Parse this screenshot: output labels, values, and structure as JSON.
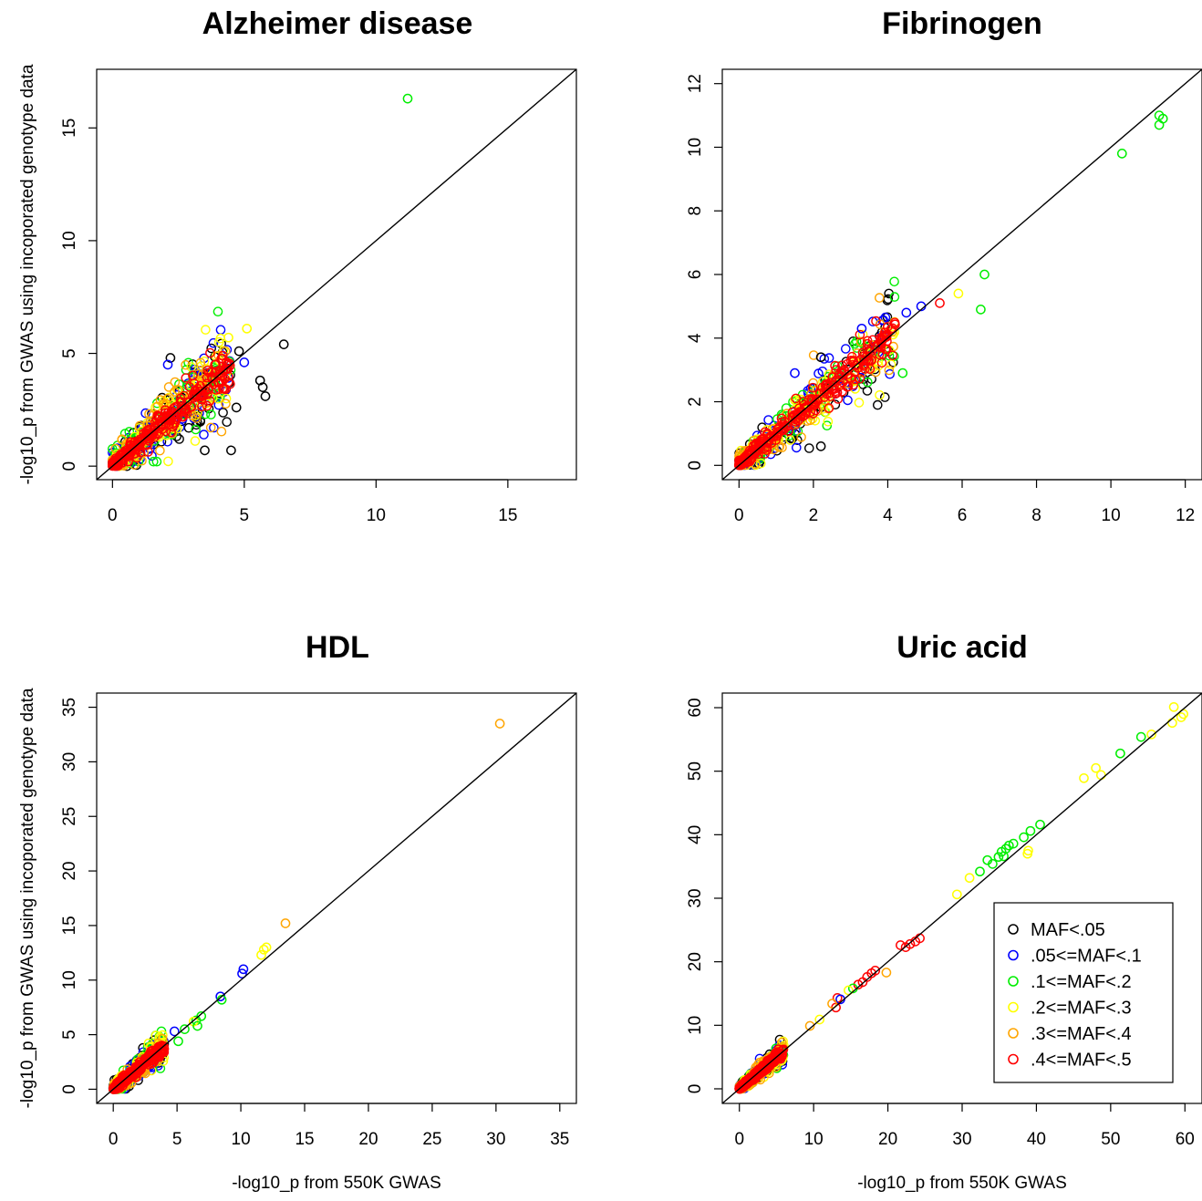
{
  "figure": {
    "ylabel": "-log10_p from GWAS using incoporated genotype data",
    "xlabel": "-log10_p from 550K GWAS"
  },
  "legend": {
    "entries": [
      {
        "label": "MAF<.05",
        "color": "#000000"
      },
      {
        "label": ".05<=MAF<.1",
        "color": "#0000ff"
      },
      {
        "label": ".1<=MAF<.2",
        "color": "#00ee00"
      },
      {
        "label": ".2<=MAF<.3",
        "color": "#ffff00"
      },
      {
        "label": ".3<=MAF<.4",
        "color": "#ffa500"
      },
      {
        "label": ".4<=MAF<.5",
        "color": "#ff0000"
      }
    ]
  },
  "chart_data": [
    {
      "type": "scatter",
      "title": "Alzheimer disease",
      "xlim": [
        -0.6,
        17.6
      ],
      "ylim": [
        -0.6,
        17.6
      ],
      "xticks": [
        0,
        5,
        10,
        15
      ],
      "yticks": [
        0,
        5,
        10,
        15
      ],
      "cloud": {
        "x_max": 4.5,
        "spread": 0.8
      },
      "points": [
        {
          "x": 11.2,
          "y": 16.3,
          "maf": 2
        },
        {
          "x": 6.5,
          "y": 5.4,
          "maf": 0
        },
        {
          "x": 5.1,
          "y": 6.1,
          "maf": 3
        },
        {
          "x": 4.5,
          "y": 0.7,
          "maf": 0
        },
        {
          "x": 5.6,
          "y": 3.8,
          "maf": 0
        },
        {
          "x": 5.8,
          "y": 3.1,
          "maf": 0
        },
        {
          "x": 5.7,
          "y": 3.5,
          "maf": 0
        },
        {
          "x": 5.0,
          "y": 4.6,
          "maf": 1
        },
        {
          "x": 4.8,
          "y": 5.1,
          "maf": 0
        },
        {
          "x": 3.5,
          "y": 0.7,
          "maf": 0
        },
        {
          "x": 2.2,
          "y": 4.8,
          "maf": 0
        },
        {
          "x": 4.7,
          "y": 2.6,
          "maf": 0
        },
        {
          "x": 4.4,
          "y": 5.7,
          "maf": 3
        },
        {
          "x": 2.1,
          "y": 4.5,
          "maf": 1
        }
      ]
    },
    {
      "type": "scatter",
      "title": "Fibrinogen",
      "xlim": [
        -0.45,
        12.45
      ],
      "ylim": [
        -0.45,
        12.45
      ],
      "xticks": [
        0,
        2,
        4,
        6,
        8,
        10,
        12
      ],
      "yticks": [
        0,
        2,
        4,
        6,
        8,
        10,
        12
      ],
      "cloud": {
        "x_max": 4.2,
        "spread": 0.5
      },
      "points": [
        {
          "x": 11.3,
          "y": 11.0,
          "maf": 2
        },
        {
          "x": 11.4,
          "y": 10.9,
          "maf": 2
        },
        {
          "x": 11.3,
          "y": 10.7,
          "maf": 2
        },
        {
          "x": 10.3,
          "y": 9.8,
          "maf": 2
        },
        {
          "x": 6.6,
          "y": 6.0,
          "maf": 2
        },
        {
          "x": 6.5,
          "y": 4.9,
          "maf": 2
        },
        {
          "x": 5.9,
          "y": 5.4,
          "maf": 3
        },
        {
          "x": 5.4,
          "y": 5.1,
          "maf": 5
        },
        {
          "x": 4.9,
          "y": 5.0,
          "maf": 1
        },
        {
          "x": 4.5,
          "y": 4.8,
          "maf": 1
        },
        {
          "x": 3.3,
          "y": 4.3,
          "maf": 1
        },
        {
          "x": 2.2,
          "y": 3.4,
          "maf": 0
        },
        {
          "x": 2.2,
          "y": 0.6,
          "maf": 0
        },
        {
          "x": 4.4,
          "y": 2.9,
          "maf": 2
        },
        {
          "x": 1.5,
          "y": 2.9,
          "maf": 1
        }
      ]
    },
    {
      "type": "scatter",
      "title": "HDL",
      "xlim": [
        -1.3,
        36.3
      ],
      "ylim": [
        -1.3,
        36.3
      ],
      "xticks": [
        0,
        5,
        10,
        15,
        20,
        25,
        30,
        35
      ],
      "yticks": [
        0,
        5,
        10,
        15,
        20,
        25,
        30,
        35
      ],
      "cloud": {
        "x_max": 4.0,
        "spread": 0.6
      },
      "points": [
        {
          "x": 30.3,
          "y": 33.5,
          "maf": 4
        },
        {
          "x": 13.5,
          "y": 15.2,
          "maf": 4
        },
        {
          "x": 11.6,
          "y": 12.3,
          "maf": 3
        },
        {
          "x": 11.8,
          "y": 12.8,
          "maf": 3
        },
        {
          "x": 12.0,
          "y": 13.0,
          "maf": 3
        },
        {
          "x": 10.1,
          "y": 10.6,
          "maf": 1
        },
        {
          "x": 10.2,
          "y": 11.0,
          "maf": 1
        },
        {
          "x": 8.4,
          "y": 8.5,
          "maf": 1
        },
        {
          "x": 8.5,
          "y": 8.2,
          "maf": 2
        },
        {
          "x": 6.9,
          "y": 6.7,
          "maf": 2
        },
        {
          "x": 6.5,
          "y": 6.3,
          "maf": 2
        },
        {
          "x": 6.3,
          "y": 6.2,
          "maf": 3
        },
        {
          "x": 6.6,
          "y": 5.8,
          "maf": 2
        },
        {
          "x": 5.6,
          "y": 5.5,
          "maf": 2
        },
        {
          "x": 4.8,
          "y": 5.3,
          "maf": 1
        },
        {
          "x": 5.1,
          "y": 4.4,
          "maf": 2
        }
      ]
    },
    {
      "type": "scatter",
      "title": "Uric acid",
      "xlim": [
        -2.3,
        62.3
      ],
      "ylim": [
        -2.3,
        62.3
      ],
      "xticks": [
        0,
        10,
        20,
        30,
        40,
        50,
        60
      ],
      "yticks": [
        0,
        10,
        20,
        30,
        40,
        50,
        60
      ],
      "cloud": {
        "x_max": 6.0,
        "spread": 0.7
      },
      "points": [
        {
          "x": 58.5,
          "y": 60.1,
          "maf": 3
        },
        {
          "x": 59.8,
          "y": 59.0,
          "maf": 3
        },
        {
          "x": 59.5,
          "y": 58.5,
          "maf": 3
        },
        {
          "x": 58.3,
          "y": 57.6,
          "maf": 3
        },
        {
          "x": 55.5,
          "y": 55.8,
          "maf": 3
        },
        {
          "x": 54.1,
          "y": 55.4,
          "maf": 2
        },
        {
          "x": 51.3,
          "y": 52.8,
          "maf": 2
        },
        {
          "x": 48.0,
          "y": 50.5,
          "maf": 3
        },
        {
          "x": 48.7,
          "y": 49.4,
          "maf": 3
        },
        {
          "x": 46.4,
          "y": 48.9,
          "maf": 3
        },
        {
          "x": 40.5,
          "y": 41.6,
          "maf": 2
        },
        {
          "x": 39.2,
          "y": 40.6,
          "maf": 2
        },
        {
          "x": 38.3,
          "y": 39.6,
          "maf": 2
        },
        {
          "x": 38.9,
          "y": 37.5,
          "maf": 3
        },
        {
          "x": 38.8,
          "y": 37.0,
          "maf": 3
        },
        {
          "x": 36.9,
          "y": 38.6,
          "maf": 2
        },
        {
          "x": 36.3,
          "y": 38.3,
          "maf": 2
        },
        {
          "x": 35.9,
          "y": 37.8,
          "maf": 2
        },
        {
          "x": 35.6,
          "y": 36.6,
          "maf": 2
        },
        {
          "x": 35.3,
          "y": 37.3,
          "maf": 2
        },
        {
          "x": 34.9,
          "y": 36.5,
          "maf": 2
        },
        {
          "x": 34.1,
          "y": 35.4,
          "maf": 2
        },
        {
          "x": 33.4,
          "y": 36.0,
          "maf": 2
        },
        {
          "x": 32.4,
          "y": 34.2,
          "maf": 2
        },
        {
          "x": 31.0,
          "y": 33.2,
          "maf": 3
        },
        {
          "x": 29.3,
          "y": 30.6,
          "maf": 3
        },
        {
          "x": 24.3,
          "y": 23.7,
          "maf": 5
        },
        {
          "x": 23.7,
          "y": 23.2,
          "maf": 5
        },
        {
          "x": 23.0,
          "y": 22.8,
          "maf": 5
        },
        {
          "x": 22.4,
          "y": 22.3,
          "maf": 5
        },
        {
          "x": 21.7,
          "y": 22.6,
          "maf": 5
        },
        {
          "x": 19.8,
          "y": 18.3,
          "maf": 4
        },
        {
          "x": 18.3,
          "y": 18.6,
          "maf": 5
        },
        {
          "x": 17.8,
          "y": 18.2,
          "maf": 5
        },
        {
          "x": 17.2,
          "y": 17.6,
          "maf": 5
        },
        {
          "x": 16.6,
          "y": 16.8,
          "maf": 5
        },
        {
          "x": 16.0,
          "y": 16.4,
          "maf": 5
        },
        {
          "x": 15.3,
          "y": 15.8,
          "maf": 2
        },
        {
          "x": 14.7,
          "y": 15.5,
          "maf": 3
        },
        {
          "x": 13.2,
          "y": 14.3,
          "maf": 5
        },
        {
          "x": 13.6,
          "y": 14.1,
          "maf": 1
        },
        {
          "x": 13.0,
          "y": 12.8,
          "maf": 5
        },
        {
          "x": 12.5,
          "y": 13.4,
          "maf": 4
        },
        {
          "x": 10.8,
          "y": 10.9,
          "maf": 3
        },
        {
          "x": 9.5,
          "y": 9.9,
          "maf": 4
        }
      ]
    }
  ]
}
